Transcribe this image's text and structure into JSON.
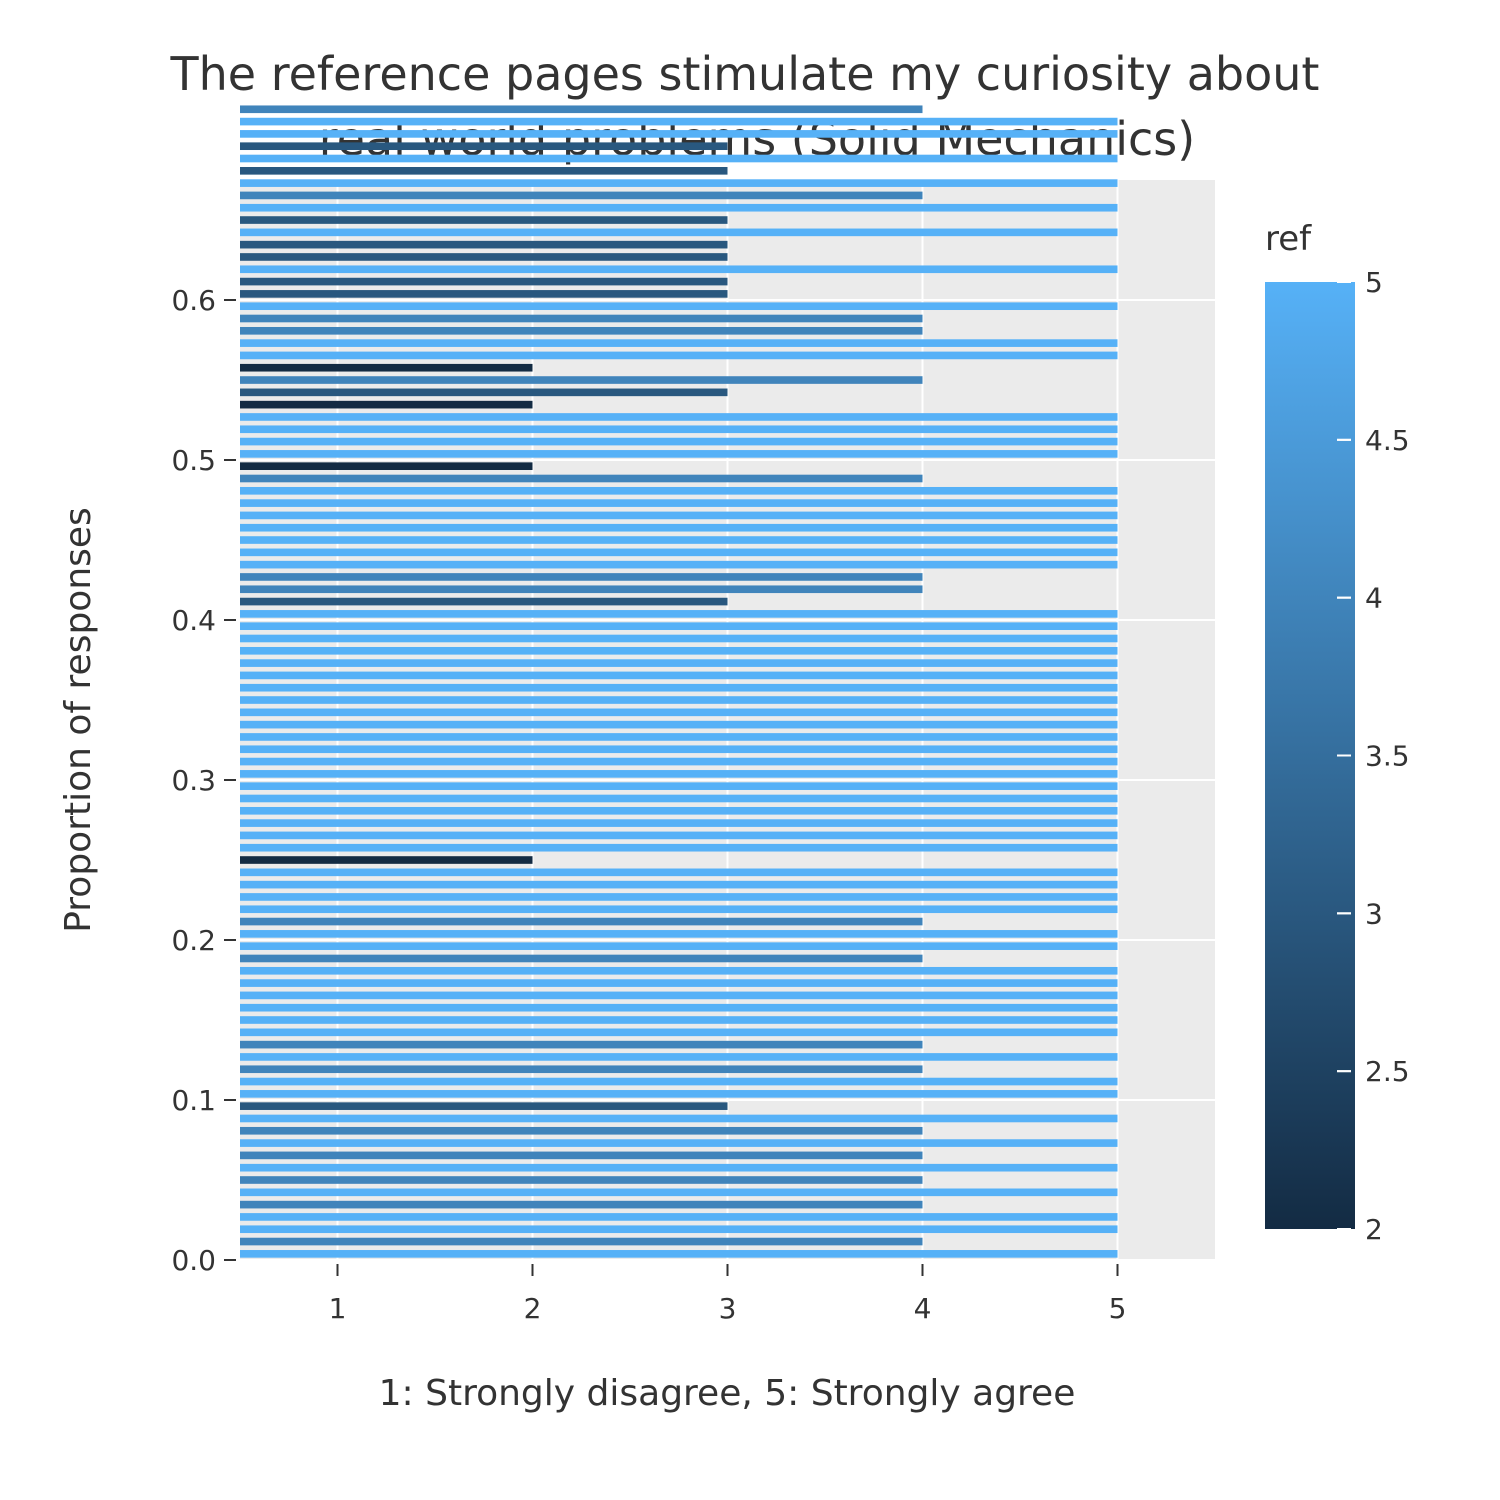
{
  "chart_data": {
    "type": "bar",
    "orientation": "horizontal",
    "title_lines": [
      "The reference pages stimulate my curiosity about",
      "real world problems (Solid Mechanics)"
    ],
    "xlabel": "1: Strongly disagree, 5: Strongly agree",
    "ylabel": "Proportion of responses",
    "xlim": [
      0.5,
      5.5
    ],
    "ylim": [
      0,
      0.675
    ],
    "xticks": [
      "1",
      "2",
      "3",
      "4",
      "5"
    ],
    "yticks": [
      "0.0",
      "0.1",
      "0.2",
      "0.3",
      "0.4",
      "0.5",
      "0.6"
    ],
    "bar_step": 0.007692,
    "values": [
      5,
      4,
      5,
      5,
      4,
      5,
      4,
      5,
      4,
      5,
      4,
      5,
      3,
      5,
      5,
      4,
      5,
      4,
      5,
      5,
      5,
      5,
      5,
      5,
      4,
      5,
      5,
      4,
      5,
      5,
      5,
      5,
      2,
      5,
      5,
      5,
      5,
      5,
      5,
      5,
      5,
      5,
      5,
      5,
      5,
      5,
      5,
      5,
      5,
      5,
      5,
      5,
      5,
      3,
      4,
      4,
      5,
      5,
      5,
      5,
      5,
      5,
      5,
      4,
      2,
      5,
      5,
      5,
      5,
      2,
      3,
      4,
      2,
      5,
      5,
      4,
      4,
      5,
      3,
      3,
      5,
      3,
      3,
      5,
      3,
      5,
      4,
      5,
      3,
      5,
      3,
      5,
      5,
      4
    ],
    "colorscale": {
      "min": 2,
      "max": 5,
      "low_color": "#132b43",
      "high_color": "#56b1f7"
    },
    "legend": {
      "title": "ref",
      "ticks": [
        "2",
        "2.5",
        "3",
        "3.5",
        "4",
        "4.5",
        "5"
      ],
      "placement": "right"
    },
    "grid": true,
    "panel_background": "#ebebeb",
    "grid_color": "#ffffff"
  }
}
